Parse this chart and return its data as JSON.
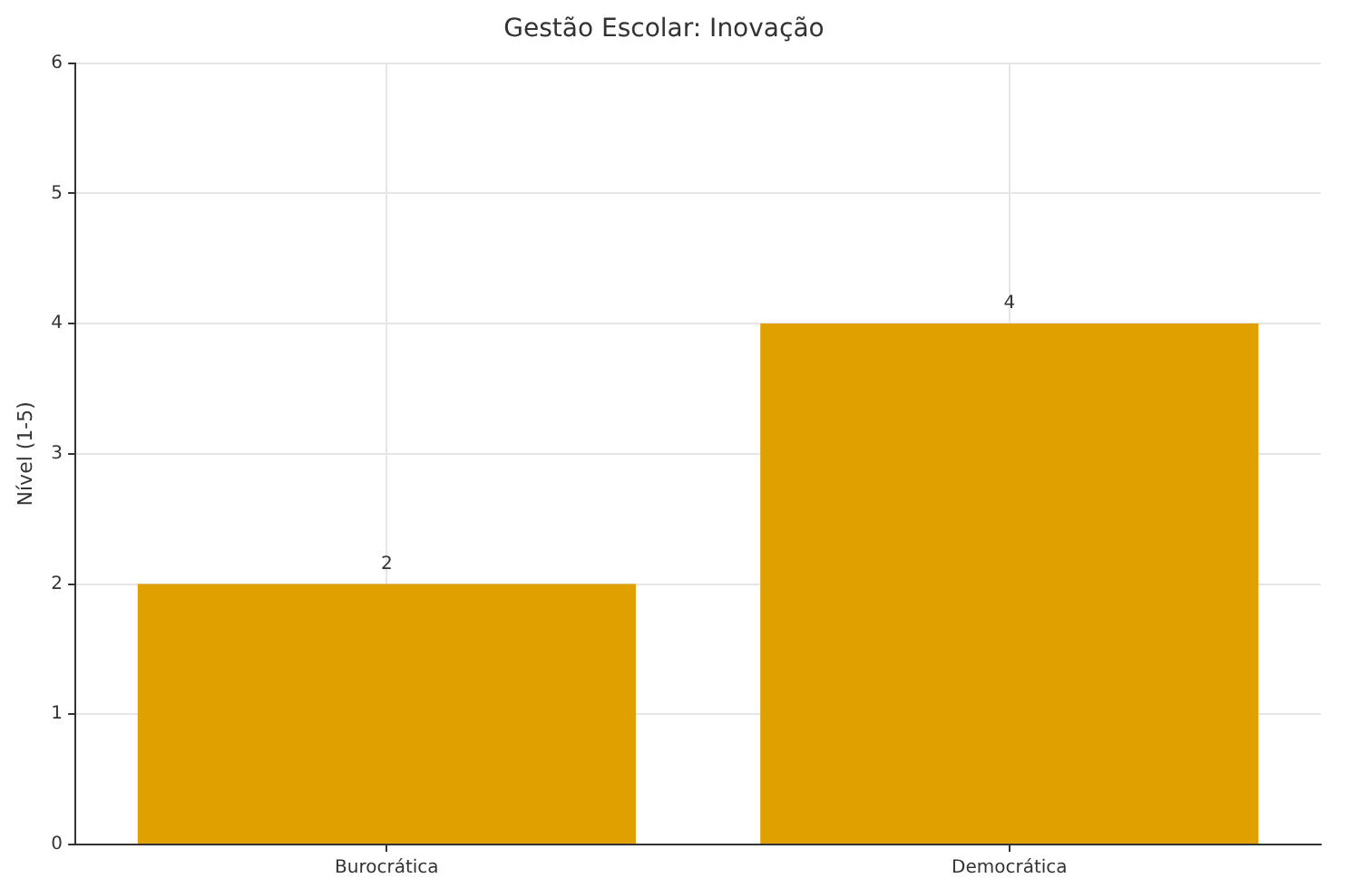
{
  "chart_data": {
    "type": "bar",
    "title": "Gestão Escolar: Inovação",
    "ylabel": "Nível (1-5)",
    "categories": [
      "Burocrática",
      "Democrática"
    ],
    "values": [
      2,
      4
    ],
    "color": "#e0a000",
    "ylim": [
      0,
      6
    ],
    "yticks": [
      0,
      1,
      2,
      3,
      4,
      5,
      6
    ],
    "grid": true,
    "data_labels": true
  }
}
